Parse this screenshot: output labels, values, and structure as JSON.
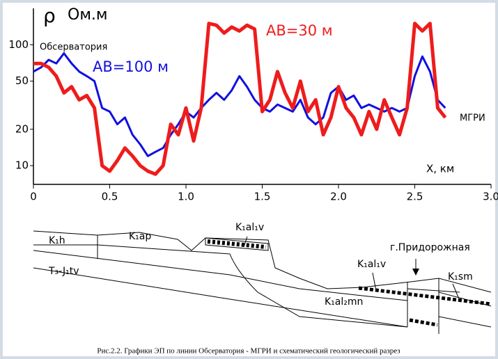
{
  "chart_data": {
    "type": "line",
    "y_label": "ρ",
    "y_unit": "Ом.м",
    "x_label": "X, км",
    "annotations": [
      "Обсерватория",
      "МГРИ"
    ],
    "log_y": true,
    "x": [
      0,
      0.05,
      0.1,
      0.15,
      0.2,
      0.25,
      0.3,
      0.35,
      0.4,
      0.45,
      0.5,
      0.55,
      0.6,
      0.65,
      0.7,
      0.75,
      0.8,
      0.85,
      0.9,
      0.95,
      1.0,
      1.05,
      1.1,
      1.15,
      1.2,
      1.25,
      1.3,
      1.35,
      1.4,
      1.45,
      1.5,
      1.55,
      1.6,
      1.65,
      1.7,
      1.75,
      1.8,
      1.85,
      1.9,
      1.95,
      2.0,
      2.05,
      2.1,
      2.15,
      2.2,
      2.25,
      2.3,
      2.35,
      2.4,
      2.45,
      2.5,
      2.55,
      2.6,
      2.65,
      2.7
    ],
    "series": [
      {
        "name": "AB=100 м",
        "color": "#1010e0",
        "values": [
          60,
          65,
          75,
          70,
          85,
          70,
          60,
          55,
          50,
          30,
          28,
          22,
          25,
          18,
          15,
          12,
          13,
          14,
          18,
          22,
          28,
          25,
          30,
          35,
          40,
          35,
          42,
          55,
          45,
          35,
          30,
          28,
          32,
          30,
          28,
          35,
          25,
          22,
          25,
          40,
          45,
          35,
          38,
          30,
          32,
          30,
          28,
          30,
          28,
          30,
          55,
          80,
          60,
          35,
          30
        ]
      },
      {
        "name": "AB=30 м",
        "color": "#ee1c1c",
        "values": [
          70,
          70,
          65,
          55,
          40,
          45,
          35,
          38,
          30,
          10,
          9,
          11,
          14,
          12,
          10,
          9,
          8.5,
          10,
          22,
          18,
          30,
          16,
          30,
          150,
          145,
          125,
          140,
          130,
          145,
          135,
          28,
          35,
          60,
          40,
          30,
          50,
          28,
          35,
          18,
          25,
          45,
          30,
          25,
          18,
          28,
          20,
          35,
          25,
          18,
          30,
          150,
          130,
          150,
          30,
          25
        ]
      }
    ],
    "xlim": [
      0,
      3.0
    ],
    "xticks": [
      0,
      0.5,
      {
        "value": 1.0,
        "label": "1.0"
      },
      1.5,
      {
        "value": 2.0,
        "label": "2.0"
      },
      2.5,
      {
        "value": 3.0,
        "label": "3.0"
      }
    ],
    "ylim": [
      7,
      200
    ],
    "yticks": [
      10,
      20,
      50,
      100
    ]
  },
  "diagram": {
    "labels": [
      "K₁h",
      "K₁ap",
      "K₁al₁v",
      "T₃-J₁tv",
      "K₁al₁v",
      "г.Придорожная",
      "K₁al₂mn",
      "K₁sm"
    ]
  },
  "caption": "Рис.2.2. Графики ЭП по линии Обсерватория - МГРИ и схематический геологический разрез"
}
